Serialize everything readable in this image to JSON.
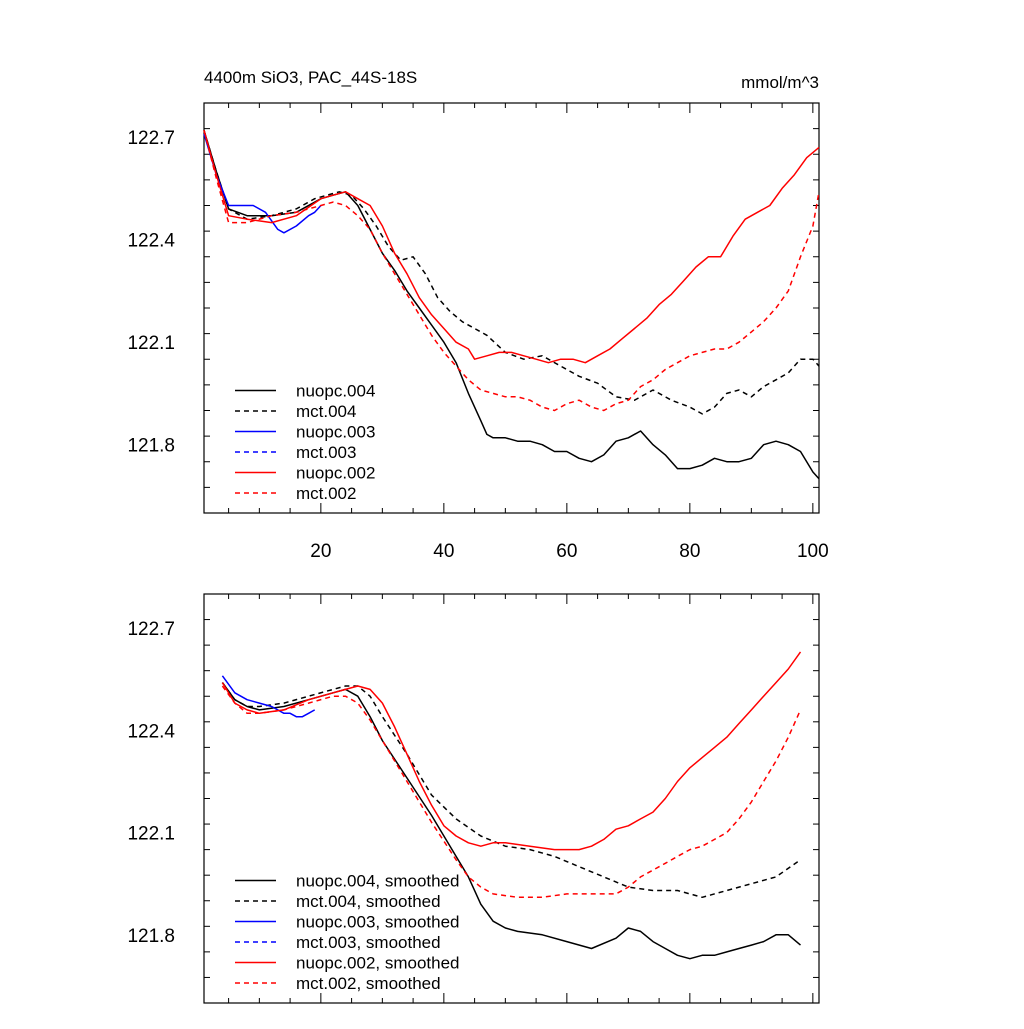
{
  "chart_data": [
    {
      "type": "line",
      "title": "4400m SiO3, PAC_44S-18S",
      "units": "mmol/m^3",
      "xlim": [
        1,
        101
      ],
      "ylim": [
        121.6,
        122.8
      ],
      "xticks": [
        20,
        40,
        60,
        80,
        100
      ],
      "yticks": [
        121.8,
        122.1,
        122.4,
        122.7
      ],
      "ytick_labels": [
        "121.8",
        "122.1",
        "122.4",
        "122.7"
      ],
      "xtick_labels": [
        "20",
        "40",
        "60",
        "80",
        "100"
      ],
      "legend_placement": "bottom-left",
      "series": [
        {
          "name": "nuopc.004",
          "color": "#000000",
          "dash": "solid",
          "x": [
            1,
            3,
            5,
            8,
            12,
            16,
            20,
            22,
            24,
            26,
            28,
            30,
            32,
            34,
            36,
            38,
            40,
            42,
            44,
            46,
            47,
            48,
            50,
            52,
            54,
            56,
            58,
            60,
            62,
            64,
            66,
            68,
            70,
            72,
            74,
            76,
            78,
            80,
            82,
            84,
            86,
            88,
            90,
            92,
            94,
            96,
            98,
            100,
            101
          ],
          "y": [
            122.72,
            122.6,
            122.49,
            122.47,
            122.47,
            122.48,
            122.52,
            122.53,
            122.54,
            122.5,
            122.43,
            122.36,
            122.31,
            122.25,
            122.2,
            122.15,
            122.1,
            122.04,
            121.95,
            121.87,
            121.83,
            121.82,
            121.82,
            121.81,
            121.81,
            121.8,
            121.78,
            121.78,
            121.76,
            121.75,
            121.77,
            121.81,
            121.82,
            121.84,
            121.8,
            121.77,
            121.73,
            121.73,
            121.74,
            121.76,
            121.75,
            121.75,
            121.76,
            121.8,
            121.81,
            121.8,
            121.78,
            121.72,
            121.7
          ]
        },
        {
          "name": "mct.004",
          "color": "#000000",
          "dash": "dashed",
          "x": [
            1,
            3,
            5,
            8,
            12,
            16,
            19,
            21,
            23,
            25,
            27,
            29,
            31,
            33,
            35,
            37,
            39,
            41,
            43,
            45,
            47,
            50,
            53,
            56,
            59,
            62,
            65,
            68,
            71,
            74,
            77,
            80,
            82,
            84,
            86,
            88,
            90,
            92,
            94,
            96,
            98,
            100,
            101
          ],
          "y": [
            122.72,
            122.6,
            122.49,
            122.46,
            122.47,
            122.49,
            122.52,
            122.53,
            122.54,
            122.53,
            122.49,
            122.44,
            122.38,
            122.34,
            122.35,
            122.3,
            122.23,
            122.19,
            122.16,
            122.14,
            122.12,
            122.07,
            122.05,
            122.06,
            122.03,
            122.0,
            121.98,
            121.94,
            121.93,
            121.96,
            121.93,
            121.91,
            121.89,
            121.91,
            121.95,
            121.96,
            121.94,
            121.97,
            121.99,
            122.01,
            122.05,
            122.05,
            122.03
          ]
        },
        {
          "name": "nuopc.003",
          "color": "#0000ff",
          "dash": "solid",
          "x": [
            1,
            3,
            5,
            7,
            9,
            11,
            13,
            14,
            16,
            18,
            19,
            20
          ],
          "y": [
            122.71,
            122.59,
            122.5,
            122.5,
            122.5,
            122.48,
            122.43,
            122.42,
            122.44,
            122.47,
            122.48,
            122.5
          ]
        },
        {
          "name": "mct.003",
          "color": "#0000ff",
          "dash": "dashed",
          "x": [],
          "y": []
        },
        {
          "name": "nuopc.002",
          "color": "#ff0000",
          "dash": "solid",
          "x": [
            1,
            3,
            5,
            8,
            12,
            16,
            20,
            22,
            24,
            26,
            28,
            30,
            32,
            34,
            36,
            38,
            40,
            42,
            44,
            45,
            47,
            49,
            51,
            53,
            55,
            57,
            59,
            61,
            63,
            65,
            67,
            69,
            71,
            73,
            75,
            77,
            79,
            81,
            83,
            85,
            87,
            89,
            91,
            93,
            95,
            97,
            99,
            101
          ],
          "y": [
            122.72,
            122.59,
            122.47,
            122.46,
            122.45,
            122.47,
            122.52,
            122.53,
            122.54,
            122.52,
            122.5,
            122.44,
            122.36,
            122.3,
            122.23,
            122.18,
            122.14,
            122.1,
            122.08,
            122.05,
            122.06,
            122.07,
            122.07,
            122.06,
            122.05,
            122.04,
            122.05,
            122.05,
            122.04,
            122.06,
            122.08,
            122.11,
            122.14,
            122.17,
            122.21,
            122.24,
            122.28,
            122.32,
            122.35,
            122.35,
            122.41,
            122.46,
            122.48,
            122.5,
            122.55,
            122.59,
            122.64,
            122.67
          ]
        },
        {
          "name": "mct.002",
          "color": "#ff0000",
          "dash": "dashed",
          "x": [
            1,
            3,
            5,
            8,
            12,
            16,
            20,
            22,
            24,
            26,
            28,
            30,
            32,
            34,
            36,
            38,
            40,
            42,
            44,
            46,
            48,
            50,
            52,
            54,
            56,
            58,
            60,
            62,
            64,
            66,
            68,
            70,
            72,
            74,
            76,
            78,
            80,
            82,
            84,
            86,
            88,
            90,
            92,
            94,
            96,
            98,
            100,
            101
          ],
          "y": [
            122.72,
            122.58,
            122.45,
            122.45,
            122.47,
            122.48,
            122.5,
            122.51,
            122.5,
            122.47,
            122.43,
            122.36,
            122.3,
            122.24,
            122.18,
            122.12,
            122.07,
            122.03,
            121.99,
            121.96,
            121.95,
            121.94,
            121.94,
            121.93,
            121.91,
            121.9,
            121.92,
            121.93,
            121.91,
            121.9,
            121.92,
            121.93,
            121.97,
            121.99,
            122.02,
            122.04,
            122.06,
            122.07,
            122.08,
            122.08,
            122.1,
            122.13,
            122.16,
            122.2,
            122.25,
            122.35,
            122.44,
            122.54
          ]
        }
      ]
    },
    {
      "type": "line",
      "title": "",
      "xlim": [
        1,
        101
      ],
      "ylim": [
        121.6,
        122.8
      ],
      "xticks": [
        20,
        40,
        60,
        80,
        100
      ],
      "yticks": [
        121.8,
        122.1,
        122.4,
        122.7
      ],
      "ytick_labels": [
        "121.8",
        "122.1",
        "122.4",
        "122.7"
      ],
      "legend_placement": "bottom-left",
      "series": [
        {
          "name": "nuopc.004, smoothed",
          "color": "#000000",
          "dash": "solid",
          "x": [
            4,
            6,
            8,
            10,
            14,
            18,
            22,
            24,
            26,
            28,
            30,
            34,
            38,
            42,
            44,
            46,
            48,
            50,
            52,
            56,
            60,
            64,
            68,
            70,
            72,
            74,
            76,
            78,
            80,
            82,
            84,
            86,
            88,
            90,
            92,
            94,
            96,
            98
          ],
          "y": [
            122.54,
            122.49,
            122.47,
            122.46,
            122.47,
            122.49,
            122.51,
            122.52,
            122.5,
            122.44,
            122.37,
            122.26,
            122.15,
            122.03,
            121.97,
            121.89,
            121.84,
            121.82,
            121.81,
            121.8,
            121.78,
            121.76,
            121.79,
            121.82,
            121.81,
            121.78,
            121.76,
            121.74,
            121.73,
            121.74,
            121.74,
            121.75,
            121.76,
            121.77,
            121.78,
            121.8,
            121.8,
            121.77
          ]
        },
        {
          "name": "mct.004, smoothed",
          "color": "#000000",
          "dash": "dashed",
          "x": [
            4,
            6,
            8,
            10,
            14,
            18,
            22,
            24,
            26,
            28,
            30,
            34,
            38,
            42,
            46,
            50,
            54,
            58,
            62,
            66,
            70,
            74,
            78,
            82,
            86,
            90,
            94,
            98
          ],
          "y": [
            122.54,
            122.49,
            122.47,
            122.47,
            122.48,
            122.5,
            122.52,
            122.53,
            122.53,
            122.5,
            122.44,
            122.33,
            122.21,
            122.14,
            122.09,
            122.06,
            122.05,
            122.03,
            122.0,
            121.97,
            121.94,
            121.93,
            121.93,
            121.91,
            121.93,
            121.95,
            121.97,
            122.02
          ]
        },
        {
          "name": "nuopc.003, smoothed",
          "color": "#0000ff",
          "dash": "solid",
          "x": [
            4,
            6,
            8,
            10,
            12,
            14,
            15,
            16,
            17,
            18,
            19
          ],
          "y": [
            122.56,
            122.51,
            122.49,
            122.48,
            122.47,
            122.45,
            122.45,
            122.44,
            122.44,
            122.45,
            122.46
          ]
        },
        {
          "name": "mct.003, smoothed",
          "color": "#0000ff",
          "dash": "dashed",
          "x": [],
          "y": []
        },
        {
          "name": "nuopc.002, smoothed",
          "color": "#ff0000",
          "dash": "solid",
          "x": [
            4,
            6,
            8,
            10,
            14,
            18,
            22,
            24,
            26,
            28,
            30,
            32,
            34,
            36,
            38,
            40,
            42,
            44,
            46,
            48,
            50,
            54,
            58,
            62,
            64,
            66,
            68,
            70,
            72,
            74,
            76,
            78,
            80,
            82,
            84,
            86,
            88,
            90,
            92,
            94,
            96,
            98
          ],
          "y": [
            122.54,
            122.48,
            122.46,
            122.45,
            122.46,
            122.49,
            122.51,
            122.52,
            122.53,
            122.52,
            122.48,
            122.41,
            122.33,
            122.25,
            122.18,
            122.12,
            122.09,
            122.07,
            122.06,
            122.07,
            122.07,
            122.06,
            122.05,
            122.05,
            122.06,
            122.08,
            122.11,
            122.12,
            122.14,
            122.16,
            122.2,
            122.25,
            122.29,
            122.32,
            122.35,
            122.38,
            122.42,
            122.46,
            122.5,
            122.54,
            122.58,
            122.63
          ]
        },
        {
          "name": "mct.002, smoothed",
          "color": "#ff0000",
          "dash": "dashed",
          "x": [
            4,
            6,
            8,
            10,
            14,
            18,
            22,
            24,
            26,
            28,
            30,
            34,
            38,
            42,
            44,
            46,
            48,
            52,
            56,
            60,
            64,
            68,
            70,
            72,
            74,
            76,
            78,
            80,
            82,
            84,
            86,
            88,
            90,
            92,
            94,
            96,
            98
          ],
          "y": [
            122.53,
            122.48,
            122.45,
            122.45,
            122.46,
            122.48,
            122.5,
            122.5,
            122.48,
            122.43,
            122.37,
            122.25,
            122.13,
            122.02,
            121.97,
            121.94,
            121.92,
            121.91,
            121.91,
            121.92,
            121.92,
            121.92,
            121.94,
            121.97,
            121.99,
            122.01,
            122.03,
            122.05,
            122.06,
            122.08,
            122.1,
            122.14,
            122.19,
            122.25,
            122.31,
            122.38,
            122.46
          ]
        }
      ]
    }
  ]
}
